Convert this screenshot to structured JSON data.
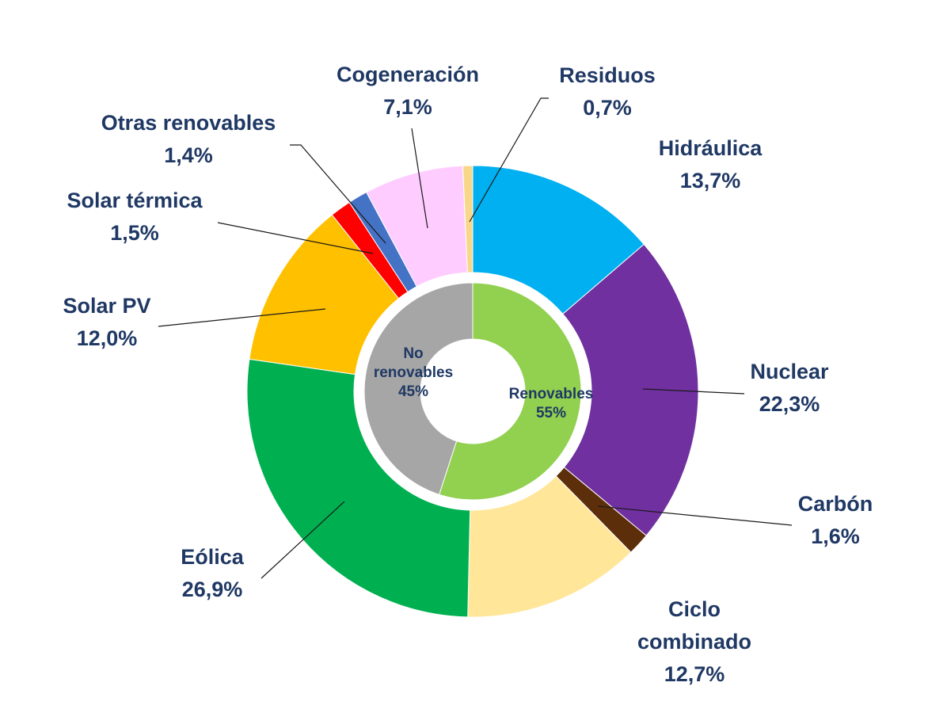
{
  "chart_data": {
    "type": "pie",
    "variant": "nested-donut",
    "title": "",
    "outer_ring": [
      {
        "name": "Hidráulica",
        "label_lines": [
          "Hidráulica"
        ],
        "value_label": "13,7%",
        "value": 13.7,
        "color": "#00b0f0"
      },
      {
        "name": "Nuclear",
        "label_lines": [
          "Nuclear"
        ],
        "value_label": "22,3%",
        "value": 22.3,
        "color": "#7030a0"
      },
      {
        "name": "Carbón",
        "label_lines": [
          "Carbón"
        ],
        "value_label": "1,6%",
        "value": 1.6,
        "color": "#5c2e0a"
      },
      {
        "name": "Ciclo combinado",
        "label_lines": [
          "Ciclo",
          "combinado"
        ],
        "value_label": "12,7%",
        "value": 12.7,
        "color": "#ffe699"
      },
      {
        "name": "Eólica",
        "label_lines": [
          "Eólica"
        ],
        "value_label": "26,9%",
        "value": 26.9,
        "color": "#00b050"
      },
      {
        "name": "Solar PV",
        "label_lines": [
          "Solar PV"
        ],
        "value_label": "12,0%",
        "value": 12.0,
        "color": "#ffc000"
      },
      {
        "name": "Solar térmica",
        "label_lines": [
          "Solar térmica"
        ],
        "value_label": "1,5%",
        "value": 1.5,
        "color": "#ff0000"
      },
      {
        "name": "Otras renovables",
        "label_lines": [
          "Otras renovables"
        ],
        "value_label": "1,4%",
        "value": 1.4,
        "color": "#4472c4"
      },
      {
        "name": "Cogeneración",
        "label_lines": [
          "Cogeneración"
        ],
        "value_label": "7,1%",
        "value": 7.1,
        "color": "#ffccff"
      },
      {
        "name": "Residuos",
        "label_lines": [
          "Residuos"
        ],
        "value_label": "0,7%",
        "value": 0.7,
        "color": "#f8d78a"
      }
    ],
    "inner_ring": [
      {
        "name": "Renovables",
        "label_lines": [
          "Renovables"
        ],
        "value_label": "55%",
        "value": 55,
        "color": "#92d050"
      },
      {
        "name": "No renovables",
        "label_lines": [
          "No",
          "renovables"
        ],
        "value_label": "45%",
        "value": 45,
        "color": "#a6a6a6"
      }
    ],
    "legend": "none"
  }
}
